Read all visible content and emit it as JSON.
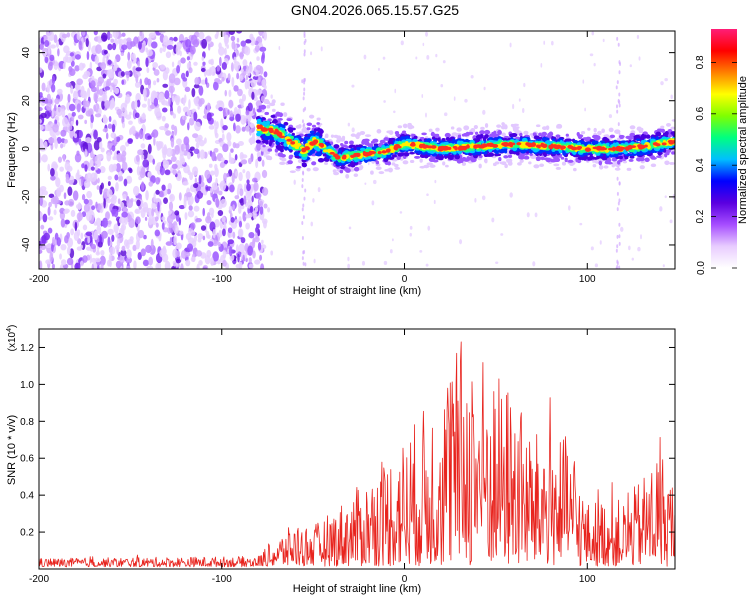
{
  "title": "GN04.2026.065.15.57.G25",
  "chart_data": [
    {
      "type": "heatmap",
      "xlabel": "Height of straight line (km)",
      "ylabel": "Frequency (Hz)",
      "xlim": [
        -200,
        148
      ],
      "ylim": [
        -50,
        49
      ],
      "xticks": [
        "-200",
        "-100",
        "0",
        "100"
      ],
      "xtick_values": [
        -200,
        -100,
        0,
        100
      ],
      "yticks": [
        "-40",
        "-20",
        "0",
        "20",
        "40"
      ],
      "ytick_values": [
        -40,
        -20,
        0,
        20,
        40
      ],
      "colorbar": {
        "label": "Normalized spectral amplitude",
        "range": [
          0,
          0.93
        ],
        "ticks": [
          "0.0",
          "0.2",
          "0.4",
          "0.6",
          "0.8"
        ],
        "tick_values": [
          0.0,
          0.2,
          0.4,
          0.6,
          0.8
        ],
        "colormap": [
          "#ffffff",
          "#e8ccff",
          "#a64dff",
          "#5a00e0",
          "#0000ff",
          "#00bfff",
          "#00ff80",
          "#80ff00",
          "#ffff00",
          "#ff8000",
          "#ff0000",
          "#ff1e78"
        ]
      },
      "noise_region_x": [
        -200,
        -78
      ],
      "ridge_centerline": {
        "x": [
          -80,
          -70,
          -60,
          -55,
          -50,
          -45,
          -40,
          -35,
          -30,
          -20,
          -10,
          0,
          20,
          40,
          60,
          80,
          100,
          120,
          148
        ],
        "y": [
          9,
          7,
          2,
          -1,
          3,
          1,
          -2,
          -4,
          -3,
          -2,
          -1,
          2,
          0,
          1,
          2,
          1,
          0,
          0,
          3
        ]
      }
    },
    {
      "type": "line",
      "xlabel": "Height of straight line (km)",
      "ylabel": "SNR (10 * v/v)",
      "scale_label": "(x10",
      "scale_exp": "4",
      "xlim": [
        -200,
        148
      ],
      "ylim": [
        0,
        1.3
      ],
      "xticks": [
        "-200",
        "-100",
        "0",
        "100"
      ],
      "xtick_values": [
        -200,
        -100,
        0,
        100
      ],
      "yticks": [
        "0.2",
        "0.4",
        "0.6",
        "0.8",
        "1.0",
        "1.2"
      ],
      "ytick_values": [
        0.2,
        0.4,
        0.6,
        0.8,
        1.0,
        1.2
      ],
      "color": "#e8241e",
      "envelope": {
        "x": [
          -200,
          -80,
          -75,
          -60,
          -50,
          -40,
          -20,
          0,
          20,
          30,
          40,
          50,
          60,
          70,
          80,
          90,
          100,
          110,
          120,
          130,
          140,
          148
        ],
        "y": [
          0.04,
          0.05,
          0.09,
          0.21,
          0.19,
          0.26,
          0.42,
          0.62,
          0.86,
          1.08,
          1.06,
          0.92,
          0.84,
          0.62,
          0.67,
          0.6,
          0.3,
          0.33,
          0.31,
          0.42,
          0.58,
          0.34
        ]
      }
    }
  ]
}
